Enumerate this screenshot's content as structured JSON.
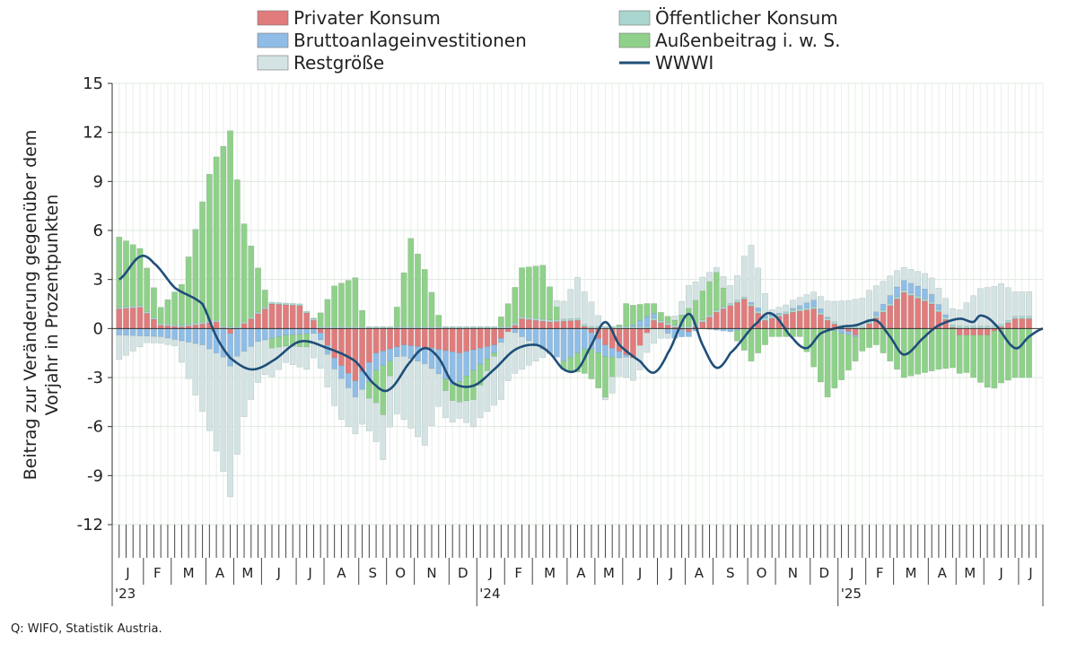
{
  "chart_data": {
    "type": "bar",
    "subtype": "stacked weekly contributions with line",
    "ylabel_line1": "Beitrag zur Veränderung gegenüber dem",
    "ylabel_line2": "Vorjahr in Prozentpunkten",
    "ylim": [
      -12,
      15
    ],
    "yticks": [
      15,
      12,
      9,
      6,
      3,
      0,
      -3,
      -6,
      -9,
      -12
    ],
    "ytick_labels": [
      "15",
      "12",
      "9",
      "6",
      "3",
      "0",
      "-3",
      "-6",
      "-9",
      "-12"
    ],
    "grid": true,
    "legend_position": "top",
    "series": [
      {
        "name": "Privater Konsum",
        "color": "#e07c7c"
      },
      {
        "name": "Öffentlicher Konsum",
        "color": "#a9d6cf"
      },
      {
        "name": "Bruttoanlageinvestitionen",
        "color": "#8fbde6"
      },
      {
        "name": "Außenbeitrag i. w. S.",
        "color": "#8fd18a"
      },
      {
        "name": "Restgröße",
        "color": "#d3e3e3"
      },
      {
        "name": "WWWI",
        "color": "#1f4e79",
        "kind": "line"
      }
    ],
    "months": [
      "J",
      "F",
      "M",
      "A",
      "M",
      "J",
      "J",
      "A",
      "S",
      "O",
      "N",
      "D",
      "J",
      "F",
      "M",
      "A",
      "M",
      "J",
      "J",
      "A",
      "S",
      "O",
      "N",
      "D",
      "J",
      "F",
      "M",
      "A",
      "M",
      "J",
      "J"
    ],
    "year_markers": [
      {
        "month_index": 0,
        "label": "'23"
      },
      {
        "month_index": 12,
        "label": "'24"
      },
      {
        "month_index": 24,
        "label": "'25"
      }
    ],
    "weeks_per_month": [
      4,
      4,
      5,
      4,
      4,
      5,
      4,
      5,
      4,
      4,
      5,
      4,
      4,
      4,
      5,
      4,
      4,
      5,
      4,
      4,
      5,
      4,
      5,
      4,
      4,
      4,
      5,
      4,
      4,
      5,
      2
    ],
    "anchors": {
      "privat": [
        [
          0,
          1.2
        ],
        [
          3,
          1.3
        ],
        [
          6,
          0.2
        ],
        [
          9,
          0.1
        ],
        [
          14,
          0.4
        ],
        [
          16,
          -0.3
        ],
        [
          22,
          1.5
        ],
        [
          26,
          1.4
        ],
        [
          28,
          0.5
        ],
        [
          31,
          -1.8
        ],
        [
          34,
          -3.2
        ],
        [
          37,
          -1.5
        ],
        [
          41,
          -1.0
        ],
        [
          45,
          -1.2
        ],
        [
          49,
          -1.5
        ],
        [
          54,
          -1.0
        ],
        [
          58,
          0.6
        ],
        [
          62,
          0.4
        ],
        [
          66,
          0.5
        ],
        [
          70,
          -1.0
        ],
        [
          74,
          -1.8
        ],
        [
          77,
          0.5
        ],
        [
          82,
          -0.2
        ],
        [
          86,
          1.0
        ],
        [
          90,
          1.8
        ],
        [
          93,
          0.5
        ],
        [
          97,
          1.0
        ],
        [
          100,
          1.2
        ],
        [
          102,
          0.5
        ],
        [
          106,
          -0.4
        ],
        [
          110,
          1.0
        ],
        [
          113,
          2.2
        ],
        [
          117,
          1.5
        ],
        [
          121,
          -0.4
        ],
        [
          125,
          -0.4
        ],
        [
          129,
          0.6
        ]
      ],
      "oeff": [
        [
          0,
          0.1
        ],
        [
          129,
          0.15
        ]
      ],
      "brutto": [
        [
          0,
          -0.4
        ],
        [
          6,
          -0.5
        ],
        [
          12,
          -1.0
        ],
        [
          16,
          -2.0
        ],
        [
          20,
          -0.8
        ],
        [
          24,
          -0.4
        ],
        [
          28,
          -0.3
        ],
        [
          32,
          -0.8
        ],
        [
          36,
          -1.2
        ],
        [
          40,
          -0.6
        ],
        [
          44,
          -1.0
        ],
        [
          48,
          -2.0
        ],
        [
          52,
          -1.0
        ],
        [
          56,
          0.0
        ],
        [
          60,
          -1.0
        ],
        [
          64,
          -2.0
        ],
        [
          68,
          -1.0
        ],
        [
          72,
          -0.4
        ],
        [
          76,
          0.6
        ],
        [
          80,
          -0.6
        ],
        [
          84,
          0.0
        ],
        [
          88,
          -0.2
        ],
        [
          92,
          0.2
        ],
        [
          96,
          0.0
        ],
        [
          100,
          0.4
        ],
        [
          104,
          -0.3
        ],
        [
          108,
          0.1
        ],
        [
          112,
          0.6
        ],
        [
          116,
          0.6
        ],
        [
          120,
          0.0
        ],
        [
          125,
          0.0
        ],
        [
          129,
          0.0
        ]
      ],
      "aussen": [
        [
          0,
          4.3
        ],
        [
          3,
          3.5
        ],
        [
          6,
          1.0
        ],
        [
          9,
          2.5
        ],
        [
          13,
          9.0
        ],
        [
          16,
          12.0
        ],
        [
          18,
          6.0
        ],
        [
          22,
          -0.6
        ],
        [
          27,
          -0.8
        ],
        [
          31,
          2.5
        ],
        [
          34,
          3.0
        ],
        [
          36,
          -1.0
        ],
        [
          38,
          -3.0
        ],
        [
          42,
          5.4
        ],
        [
          44,
          3.5
        ],
        [
          47,
          -0.7
        ],
        [
          51,
          -1.8
        ],
        [
          54,
          -0.2
        ],
        [
          58,
          3.0
        ],
        [
          61,
          3.3
        ],
        [
          64,
          -0.5
        ],
        [
          67,
          -1.5
        ],
        [
          70,
          -2.5
        ],
        [
          73,
          1.4
        ],
        [
          77,
          0.6
        ],
        [
          80,
          0.3
        ],
        [
          83,
          1.5
        ],
        [
          86,
          2.3
        ],
        [
          88,
          0.0
        ],
        [
          91,
          -2.0
        ],
        [
          94,
          -0.5
        ],
        [
          98,
          -0.5
        ],
        [
          102,
          -4.2
        ],
        [
          106,
          -1.5
        ],
        [
          109,
          -1.0
        ],
        [
          113,
          -3.0
        ],
        [
          118,
          -2.5
        ],
        [
          122,
          -2.3
        ],
        [
          126,
          -3.5
        ],
        [
          129,
          -3.0
        ]
      ],
      "rest": [
        [
          0,
          -1.5
        ],
        [
          4,
          -0.4
        ],
        [
          8,
          -0.4
        ],
        [
          13,
          -5.0
        ],
        [
          16,
          -8.0
        ],
        [
          18,
          -4.0
        ],
        [
          20,
          -2.5
        ],
        [
          24,
          -1.0
        ],
        [
          28,
          -1.5
        ],
        [
          32,
          -2.5
        ],
        [
          36,
          -2.0
        ],
        [
          40,
          -3.5
        ],
        [
          44,
          -5.0
        ],
        [
          46,
          -2.0
        ],
        [
          49,
          -1.0
        ],
        [
          52,
          -2.0
        ],
        [
          55,
          -3.5
        ],
        [
          57,
          -2.5
        ],
        [
          60,
          -1.0
        ],
        [
          63,
          0.4
        ],
        [
          66,
          2.5
        ],
        [
          68,
          1.5
        ],
        [
          71,
          -1.0
        ],
        [
          75,
          -1.5
        ],
        [
          79,
          -0.3
        ],
        [
          82,
          1.4
        ],
        [
          86,
          0.3
        ],
        [
          89,
          1.5
        ],
        [
          91,
          3.5
        ],
        [
          94,
          0.3
        ],
        [
          97,
          0.5
        ],
        [
          100,
          0.5
        ],
        [
          104,
          1.5
        ],
        [
          108,
          1.8
        ],
        [
          113,
          0.8
        ],
        [
          117,
          1.0
        ],
        [
          121,
          1.0
        ],
        [
          124,
          2.3
        ],
        [
          127,
          2.5
        ],
        [
          129,
          1.5
        ]
      ],
      "wwwi": [
        [
          0,
          3.0
        ],
        [
          3,
          4.4
        ],
        [
          5,
          4.0
        ],
        [
          8,
          2.5
        ],
        [
          12,
          1.5
        ],
        [
          14,
          -0.5
        ],
        [
          16,
          -1.8
        ],
        [
          19,
          -2.5
        ],
        [
          22,
          -2.0
        ],
        [
          26,
          -0.8
        ],
        [
          30,
          -1.2
        ],
        [
          34,
          -2.0
        ],
        [
          37,
          -3.5
        ],
        [
          39,
          -3.7
        ],
        [
          42,
          -2.0
        ],
        [
          44,
          -1.2
        ],
        [
          46,
          -1.8
        ],
        [
          48,
          -3.3
        ],
        [
          51,
          -3.5
        ],
        [
          54,
          -2.5
        ],
        [
          57,
          -1.3
        ],
        [
          60,
          -1.0
        ],
        [
          62,
          -1.5
        ],
        [
          64,
          -2.5
        ],
        [
          66,
          -2.5
        ],
        [
          68,
          -1.0
        ],
        [
          70,
          0.4
        ],
        [
          72,
          -1.0
        ],
        [
          75,
          -2.0
        ],
        [
          77,
          -2.7
        ],
        [
          79,
          -1.5
        ],
        [
          82,
          0.9
        ],
        [
          84,
          -1.0
        ],
        [
          86,
          -2.4
        ],
        [
          88,
          -1.5
        ],
        [
          92,
          0.4
        ],
        [
          94,
          0.9
        ],
        [
          97,
          -0.6
        ],
        [
          99,
          -1.2
        ],
        [
          101,
          -0.3
        ],
        [
          104,
          0.1
        ],
        [
          106,
          0.2
        ],
        [
          109,
          0.5
        ],
        [
          111,
          -0.5
        ],
        [
          113,
          -1.6
        ],
        [
          116,
          -0.5
        ],
        [
          118,
          0.2
        ],
        [
          121,
          0.6
        ],
        [
          123,
          0.4
        ],
        [
          124,
          0.8
        ],
        [
          126,
          0.3
        ],
        [
          129,
          -1.2
        ],
        [
          131,
          -0.5
        ],
        [
          133,
          0.0
        ]
      ]
    }
  },
  "source": "Q: WIFO, Statistik Austria."
}
